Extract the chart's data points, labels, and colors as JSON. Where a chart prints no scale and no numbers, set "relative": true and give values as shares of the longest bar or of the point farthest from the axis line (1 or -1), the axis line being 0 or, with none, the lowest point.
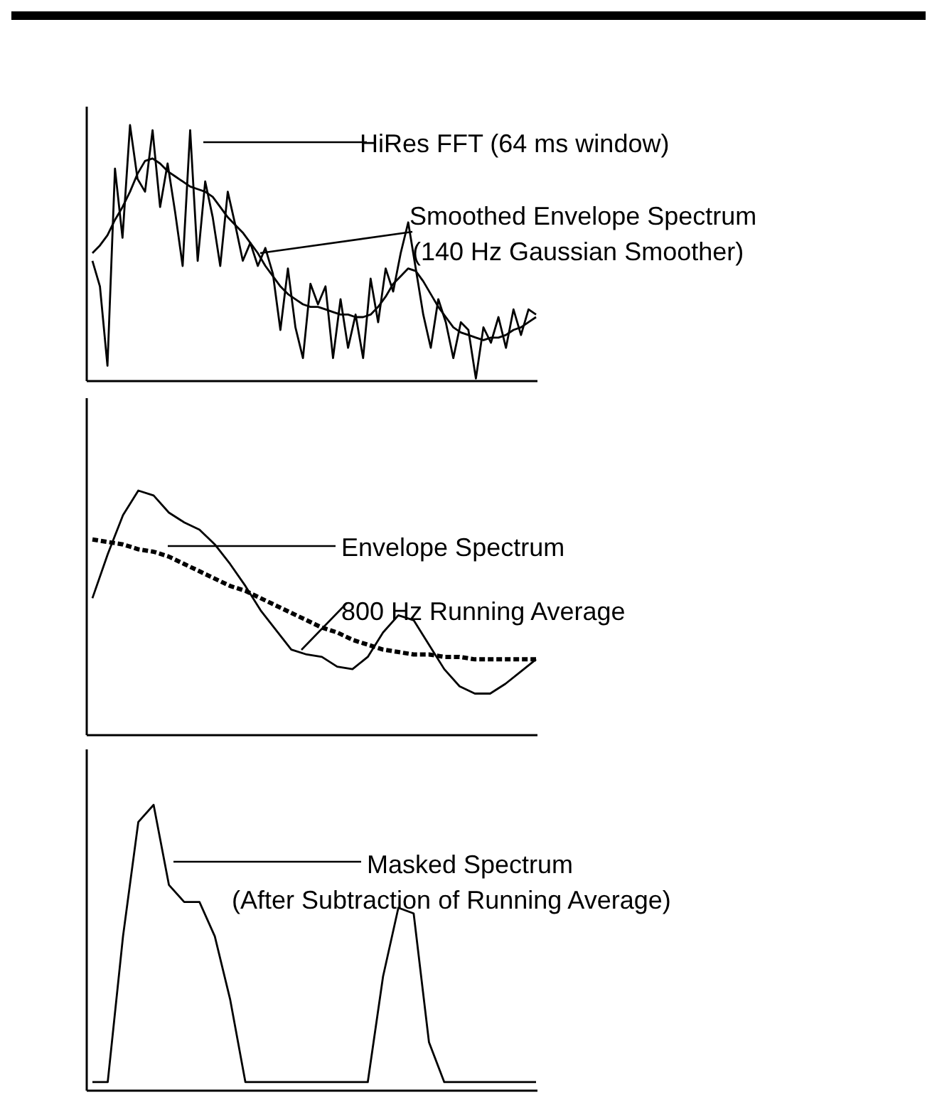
{
  "chart_data": [
    {
      "type": "line",
      "relative": true,
      "categories": [
        null,
        null,
        null,
        null,
        null,
        null,
        null,
        null,
        null,
        null,
        null,
        null,
        null,
        null,
        null,
        null,
        null,
        null,
        null,
        null,
        null,
        null,
        null,
        null,
        null,
        null,
        null,
        null,
        null,
        null,
        null,
        null,
        null,
        null,
        null,
        null,
        null,
        null,
        null,
        null,
        null,
        null,
        null,
        null,
        null,
        null,
        null,
        null,
        null,
        null,
        null,
        null,
        null,
        null,
        null,
        null,
        null,
        null,
        null,
        null
      ],
      "series": [
        {
          "color": "#000000",
          "values": [
            0.47,
            0.37,
            0.06,
            0.83,
            0.56,
            1.0,
            0.79,
            0.74,
            0.98,
            0.68,
            0.85,
            0.66,
            0.45,
            0.98,
            0.47,
            0.78,
            0.64,
            0.45,
            0.74,
            0.61,
            0.47,
            0.54,
            0.45,
            0.52,
            0.42,
            0.2,
            0.44,
            0.21,
            0.09,
            0.38,
            0.3,
            0.37,
            0.09,
            0.32,
            0.13,
            0.26,
            0.09,
            0.4,
            0.23,
            0.44,
            0.35,
            0.5,
            0.62,
            0.44,
            0.26,
            0.13,
            0.32,
            0.23,
            0.09,
            0.23,
            0.2,
            0.01,
            0.21,
            0.15,
            0.25,
            0.13,
            0.28,
            0.18,
            0.28,
            0.26
          ]
        },
        {
          "color": "#000000",
          "values": [
            0.5,
            0.53,
            0.57,
            0.63,
            0.68,
            0.74,
            0.81,
            0.86,
            0.87,
            0.85,
            0.82,
            0.8,
            0.78,
            0.76,
            0.75,
            0.74,
            0.72,
            0.68,
            0.64,
            0.61,
            0.58,
            0.54,
            0.5,
            0.45,
            0.41,
            0.37,
            0.34,
            0.32,
            0.3,
            0.29,
            0.29,
            0.28,
            0.27,
            0.26,
            0.26,
            0.25,
            0.25,
            0.26,
            0.29,
            0.33,
            0.38,
            0.41,
            0.44,
            0.43,
            0.39,
            0.34,
            0.29,
            0.25,
            0.21,
            0.19,
            0.18,
            0.17,
            0.16,
            0.17,
            0.17,
            0.18,
            0.2,
            0.21,
            0.23,
            0.25
          ]
        }
      ],
      "annotations": [
        "HiRes FFT (64 ms window)",
        "Smoothed Envelope Spectrum\n(140 Hz Gaussian Smoother)"
      ]
    },
    {
      "type": "line",
      "relative": true,
      "categories": [
        null,
        null,
        null,
        null,
        null,
        null,
        null,
        null,
        null,
        null,
        null,
        null,
        null,
        null,
        null,
        null,
        null,
        null,
        null,
        null,
        null,
        null,
        null,
        null,
        null,
        null,
        null,
        null,
        null,
        null
      ],
      "series": [
        {
          "color": "#000000",
          "values": [
            0.56,
            0.74,
            0.9,
            1.0,
            0.98,
            0.91,
            0.87,
            0.84,
            0.78,
            0.7,
            0.61,
            0.51,
            0.43,
            0.35,
            0.33,
            0.32,
            0.28,
            0.27,
            0.32,
            0.42,
            0.49,
            0.47,
            0.37,
            0.27,
            0.2,
            0.17,
            0.17,
            0.21,
            0.26,
            0.31
          ]
        },
        {
          "color": "#000000",
          "line_style": "dashed",
          "values": [
            0.8,
            0.79,
            0.78,
            0.76,
            0.75,
            0.73,
            0.7,
            0.67,
            0.64,
            0.61,
            0.59,
            0.56,
            0.53,
            0.5,
            0.47,
            0.44,
            0.42,
            0.39,
            0.37,
            0.35,
            0.34,
            0.33,
            0.33,
            0.32,
            0.32,
            0.31,
            0.31,
            0.31,
            0.31,
            0.31
          ]
        }
      ],
      "annotations": [
        "Envelope Spectrum",
        "800 Hz Running Average"
      ]
    },
    {
      "type": "line",
      "relative": true,
      "categories": [
        null,
        null,
        null,
        null,
        null,
        null,
        null,
        null,
        null,
        null,
        null,
        null,
        null,
        null,
        null,
        null,
        null,
        null,
        null,
        null,
        null,
        null,
        null,
        null,
        null,
        null,
        null,
        null,
        null,
        null
      ],
      "series": [
        {
          "color": "#000000",
          "values": [
            0.03,
            0.03,
            0.54,
            0.94,
            1.0,
            0.72,
            0.66,
            0.66,
            0.54,
            0.32,
            0.03,
            0.03,
            0.03,
            0.03,
            0.03,
            0.03,
            0.03,
            0.03,
            0.03,
            0.4,
            0.64,
            0.62,
            0.17,
            0.03,
            0.03,
            0.03,
            0.03,
            0.03,
            0.03,
            0.03
          ]
        }
      ],
      "annotations": [
        "Masked Spectrum\n(After Subtraction of Running Average)"
      ]
    }
  ]
}
